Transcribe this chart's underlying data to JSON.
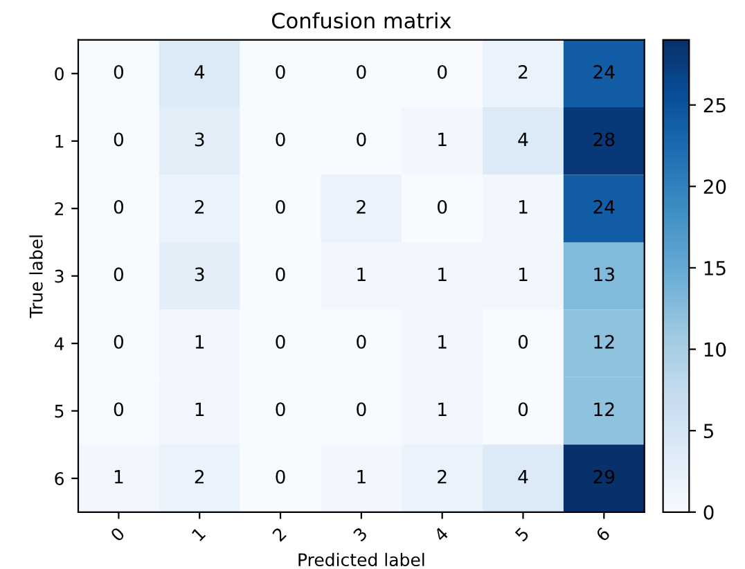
{
  "chart_data": {
    "type": "heatmap",
    "title": "Confusion matrix",
    "xlabel": "Predicted label",
    "ylabel": "True label",
    "categories": [
      "0",
      "1",
      "2",
      "3",
      "4",
      "5",
      "6"
    ],
    "y_categories": [
      "0",
      "1",
      "2",
      "3",
      "4",
      "5",
      "6"
    ],
    "cells": [
      [
        0,
        4,
        0,
        0,
        0,
        2,
        24
      ],
      [
        0,
        3,
        0,
        0,
        1,
        4,
        28
      ],
      [
        0,
        2,
        0,
        2,
        0,
        1,
        24
      ],
      [
        0,
        3,
        0,
        1,
        1,
        1,
        13
      ],
      [
        0,
        1,
        0,
        0,
        1,
        0,
        12
      ],
      [
        0,
        1,
        0,
        0,
        1,
        0,
        12
      ],
      [
        1,
        2,
        0,
        1,
        2,
        4,
        29
      ]
    ],
    "clim": [
      0,
      29
    ],
    "cticks": [
      0,
      5,
      10,
      15,
      20,
      25
    ],
    "data_labels": true
  }
}
